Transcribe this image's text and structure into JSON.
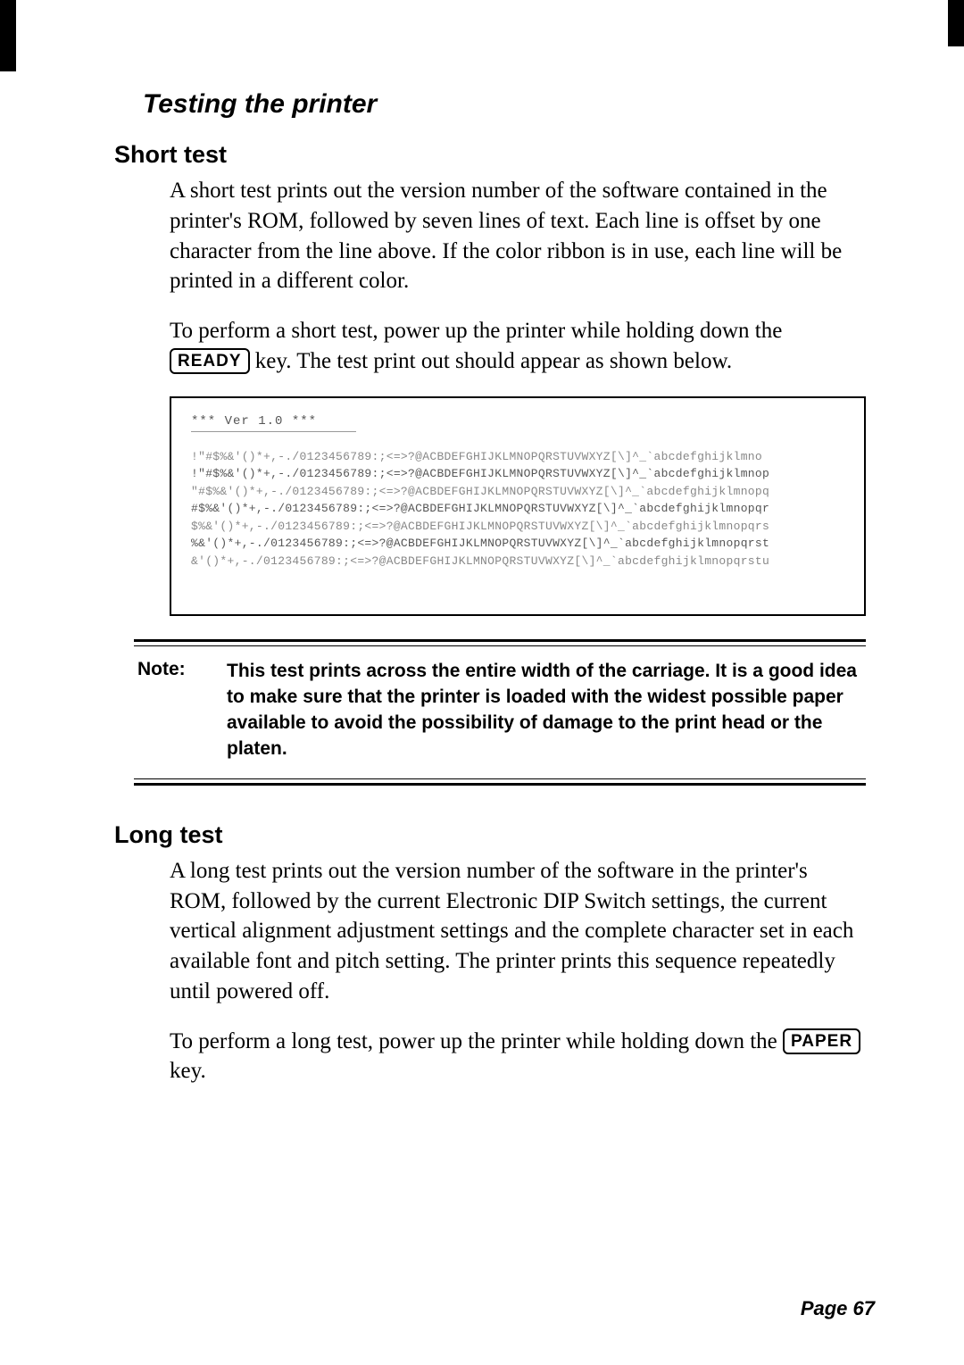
{
  "title": "Testing the printer",
  "short": {
    "heading": "Short test",
    "p1a": "A short test prints out the version number of the soft­ware contained in the printer's ROM, followed by seven lines of text. Each line is offset by one character from the line above. If the color ribbon is in use, each line will be printed in a different color.",
    "p2a": "To perform a short test, power up the printer while hold­ing down the ",
    "p2key": "READY",
    "p2b": " key. The test print out should appear as shown below."
  },
  "sample": {
    "ver": "*** Ver 1.0 ***",
    "lines": [
      " !\"#$%&'()*+,-./0123456789:;<=>?@ACBDEFGHIJKLMNOPQRSTUVWXYZ[\\]^_`abcdefghijklmno",
      "!\"#$%&'()*+,-./0123456789:;<=>?@ACBDEFGHIJKLMNOPQRSTUVWXYZ[\\]^_`abcdefghijklmnop",
      "\"#$%&'()*+,-./0123456789:;<=>?@ACBDEFGHIJKLMNOPQRSTUVWXYZ[\\]^_`abcdefghijklmnopq",
      "#$%&'()*+,-./0123456789:;<=>?@ACBDEFGHIJKLMNOPQRSTUVWXYZ[\\]^_`abcdefghijklmnopqr",
      "$%&'()*+,-./0123456789:;<=>?@ACBDEFGHIJKLMNOPQRSTUVWXYZ[\\]^_`abcdefghijklmnopqrs",
      "%&'()*+,-./0123456789:;<=>?@ACBDEFGHIJKLMNOPQRSTUVWXYZ[\\]^_`abcdefghijklmnopqrst",
      "&'()*+,-./0123456789:;<=>?@ACBDEFGHIJKLMNOPQRSTUVWXYZ[\\]^_`abcdefghijklmnopqrstu"
    ]
  },
  "note": {
    "label": "Note:",
    "text": "This test prints across the entire width of the carriage. It is a good idea to make sure that the printer is loaded with the widest possible paper available to avoid the possibility of damage to the print head or the platen."
  },
  "long": {
    "heading": "Long test",
    "p1": "A long test prints out the version number of the software in the printer's ROM, followed by the current Electronic DIP Switch settings, the current vertical alignment adjustment settings and the complete character set in each available font and pitch setting. The printer prints this sequence repeatedly until powered off.",
    "p2a": "To perform a long test, power up the printer while hold­ing down the ",
    "p2key": "PAPER",
    "p2b": " key."
  },
  "page": "Page 67"
}
